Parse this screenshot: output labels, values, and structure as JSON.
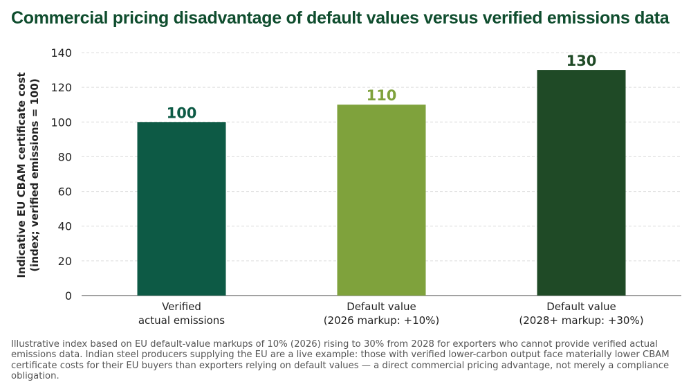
{
  "chart_data": {
    "type": "bar",
    "title": "Commercial pricing disadvantage of default values versus verified emissions data",
    "ylabel_lines": [
      "Indicative EU CBAM certificate cost",
      "(index; verified emissions = 100)"
    ],
    "xlabel": "",
    "categories": [
      [
        "Verified",
        "actual emissions"
      ],
      [
        "Default value",
        "(2026 markup: +10%)"
      ],
      [
        "Default value",
        "(2028+ markup: +30%)"
      ]
    ],
    "values": [
      100,
      110,
      130
    ],
    "data_labels": [
      "100",
      "110",
      "130"
    ],
    "colors": [
      "#0d5a45",
      "#7fa23c",
      "#1f4a26"
    ],
    "ylim": [
      0,
      140
    ],
    "yticks": [
      0,
      20,
      40,
      60,
      80,
      100,
      120,
      140
    ],
    "grid": true
  },
  "caption": "Illustrative index based on EU default-value markups of 10% (2026) rising to 30% from 2028 for exporters who cannot provide verified actual emissions data. Indian steel producers supplying the EU are a live example: those with verified lower-carbon output face materially lower CBAM certificate costs for their EU buyers than exporters relying on default values — a direct commercial pricing advantage, not merely a compliance obligation."
}
